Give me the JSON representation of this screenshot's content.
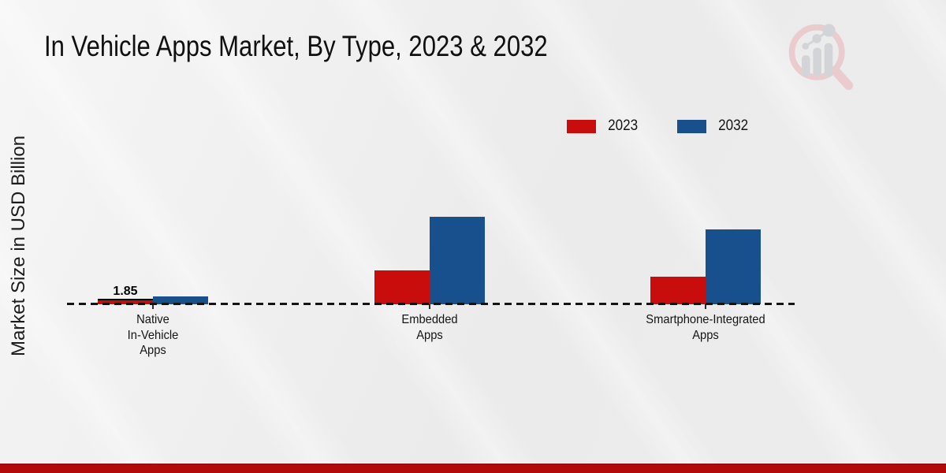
{
  "chart_data": {
    "type": "bar",
    "title": "In Vehicle Apps Market, By Type, 2023 & 2032",
    "ylabel": "Market Size in USD Billion",
    "categories": [
      [
        "Native",
        "In-Vehicle",
        "Apps"
      ],
      [
        "Embedded",
        "Apps"
      ],
      [
        "Smartphone-Integrated",
        "Apps"
      ]
    ],
    "series": [
      {
        "name": "2023",
        "color": "#c90d0d",
        "values": [
          1.85,
          17.5,
          14.2
        ]
      },
      {
        "name": "2032",
        "color": "#17508d",
        "values": [
          4.0,
          45.5,
          39.0
        ]
      }
    ],
    "value_labels": [
      {
        "series_index": 0,
        "category_index": 0,
        "text": "1.85"
      }
    ],
    "legend_position": "top-right",
    "baseline": "dashed",
    "grid": "off",
    "ylim": [
      0,
      50
    ]
  },
  "colors": {
    "accent_red": "#c90d0d",
    "accent_blue": "#17508d",
    "bottom_band": "#b20a0a",
    "background": "#ececec",
    "axis": "#141414",
    "logo_pink": "#eaccce",
    "logo_gray": "#d3d4d8"
  },
  "icons": {
    "logo": "magnifier-bar-chart-watermark"
  }
}
